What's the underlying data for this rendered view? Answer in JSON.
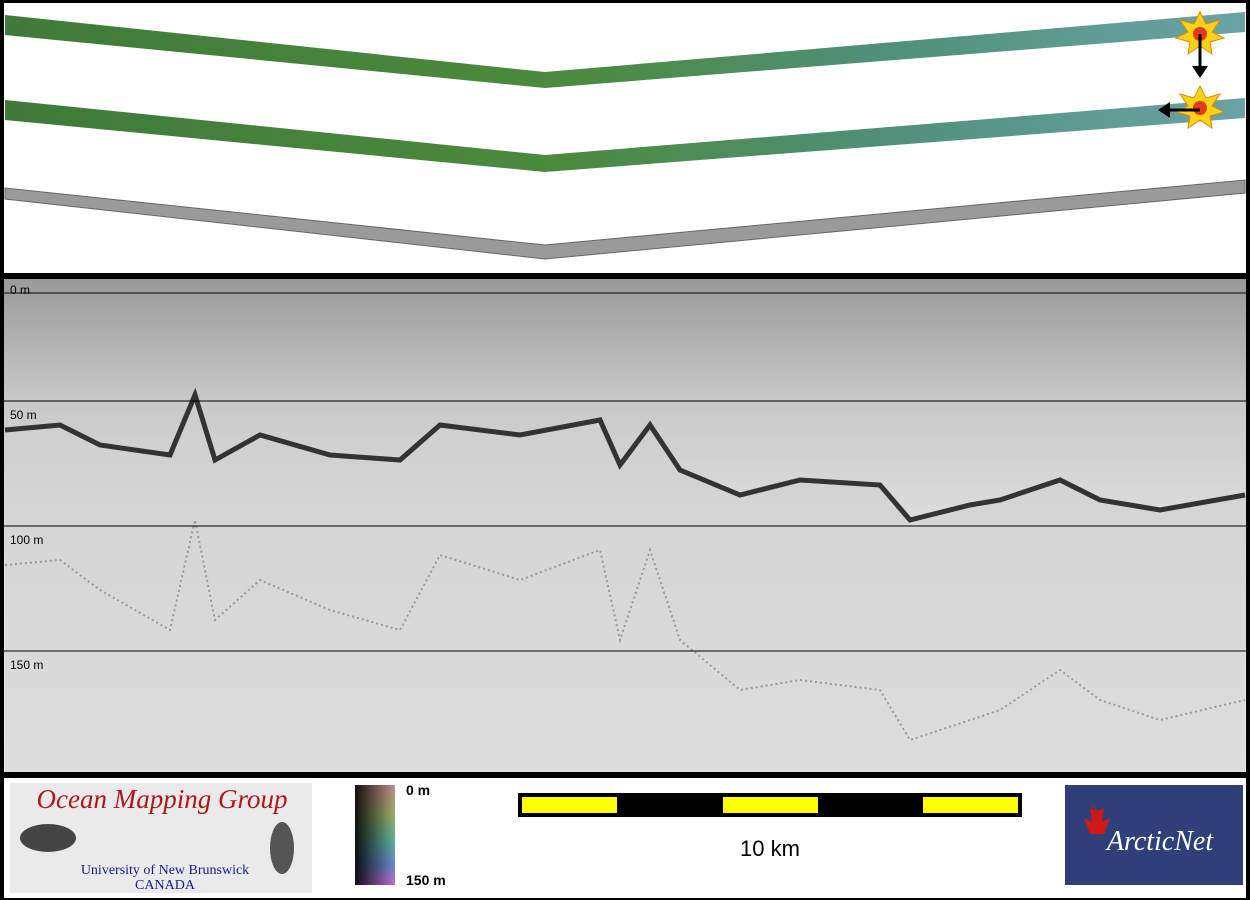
{
  "profile": {
    "depth_labels": [
      "0 m",
      "50 m",
      "100 m",
      "150 m"
    ]
  },
  "footer": {
    "logo_title": "Ocean Mapping Group",
    "logo_university": "University of New Brunswick",
    "logo_country": "CANADA",
    "colorbar_top": "0 m",
    "colorbar_bottom": "150 m",
    "scale_label": "10 km",
    "partner_logo": "ArcticNet"
  }
}
